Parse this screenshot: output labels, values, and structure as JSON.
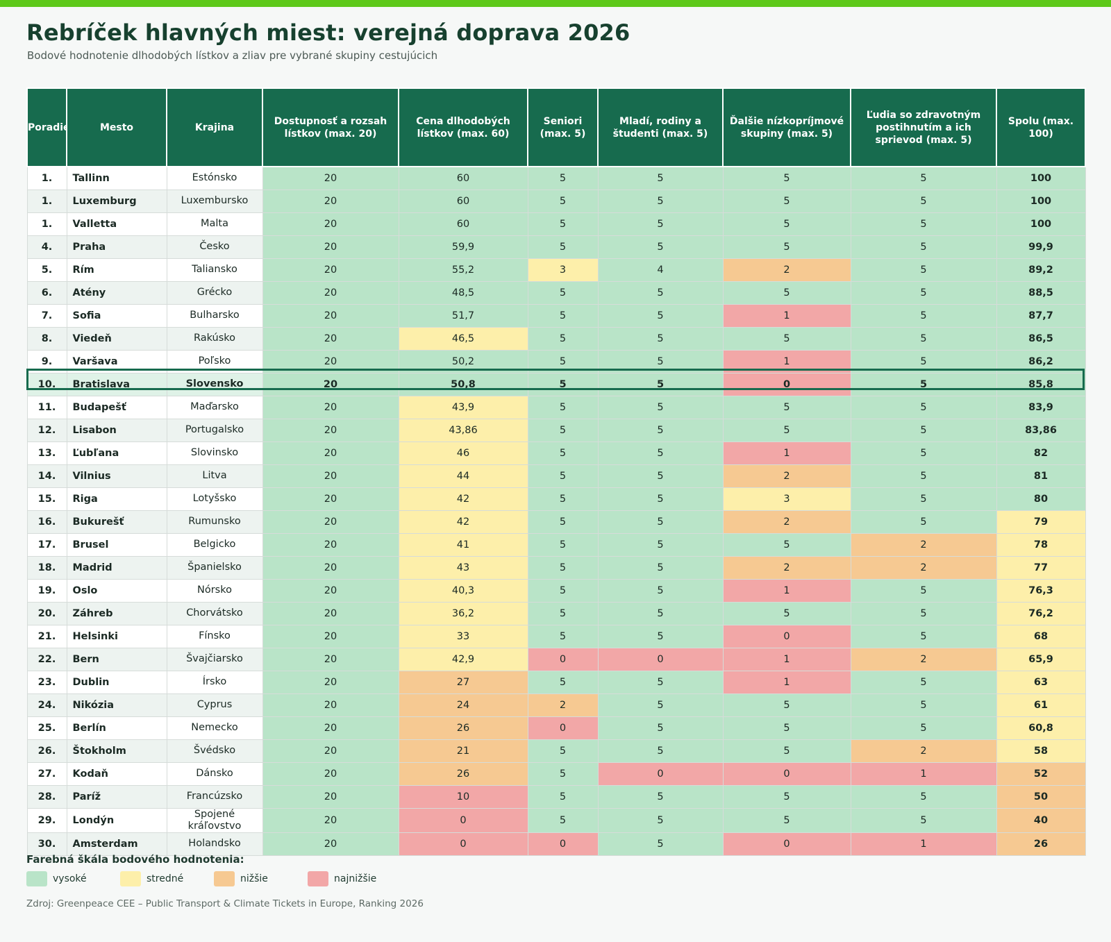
{
  "header": {
    "title": "Rebríček hlavných miest: verejná doprava 2026",
    "subtitle": "Bodové hodnotenie dlhodobých lístkov a zliav pre vybrané skupiny cestujúcich"
  },
  "table": {
    "headers": [
      "Poradie",
      "Mesto",
      "Krajina",
      "Dostupnosť a rozsah lístkov (max. 20)",
      "Cena dlhodobých lístkov (max. 60)",
      "Seniori (max. 5)",
      "Mladí, rodiny a študenti (max. 5)",
      "Ďalšie nízkopríjmové skupiny (max. 5)",
      "Ľudia so zdravotným postihnutím a ich sprievod (max. 5)",
      "Spolu (max. 100)"
    ],
    "highlighted_rank": "10.",
    "rows": [
      {
        "rank": "1.",
        "city": "Tallinn",
        "country": "Estónsko",
        "access": "20",
        "price": "60",
        "seniors": "5",
        "youth": "5",
        "lowincome": "5",
        "disabled": "5",
        "total": "100",
        "levels": [
          "high",
          "high",
          "high",
          "high",
          "high",
          "high",
          "high"
        ]
      },
      {
        "rank": "1.",
        "city": "Luxemburg",
        "country": "Luxembursko",
        "access": "20",
        "price": "60",
        "seniors": "5",
        "youth": "5",
        "lowincome": "5",
        "disabled": "5",
        "total": "100",
        "levels": [
          "high",
          "high",
          "high",
          "high",
          "high",
          "high",
          "high"
        ]
      },
      {
        "rank": "1.",
        "city": "Valletta",
        "country": "Malta",
        "access": "20",
        "price": "60",
        "seniors": "5",
        "youth": "5",
        "lowincome": "5",
        "disabled": "5",
        "total": "100",
        "levels": [
          "high",
          "high",
          "high",
          "high",
          "high",
          "high",
          "high"
        ]
      },
      {
        "rank": "4.",
        "city": "Praha",
        "country": "Česko",
        "access": "20",
        "price": "59,9",
        "seniors": "5",
        "youth": "5",
        "lowincome": "5",
        "disabled": "5",
        "total": "99,9",
        "levels": [
          "high",
          "high",
          "high",
          "high",
          "high",
          "high",
          "high"
        ]
      },
      {
        "rank": "5.",
        "city": "Rím",
        "country": "Taliansko",
        "access": "20",
        "price": "55,2",
        "seniors": "3",
        "youth": "4",
        "lowincome": "2",
        "disabled": "5",
        "total": "89,2",
        "levels": [
          "high",
          "high",
          "mid",
          "high",
          "low",
          "high",
          "high"
        ]
      },
      {
        "rank": "6.",
        "city": "Atény",
        "country": "Grécko",
        "access": "20",
        "price": "48,5",
        "seniors": "5",
        "youth": "5",
        "lowincome": "5",
        "disabled": "5",
        "total": "88,5",
        "levels": [
          "high",
          "high",
          "high",
          "high",
          "high",
          "high",
          "high"
        ]
      },
      {
        "rank": "7.",
        "city": "Sofia",
        "country": "Bulharsko",
        "access": "20",
        "price": "51,7",
        "seniors": "5",
        "youth": "5",
        "lowincome": "1",
        "disabled": "5",
        "total": "87,7",
        "levels": [
          "high",
          "high",
          "high",
          "high",
          "lowest",
          "high",
          "high"
        ]
      },
      {
        "rank": "8.",
        "city": "Viedeň",
        "country": "Rakúsko",
        "access": "20",
        "price": "46,5",
        "seniors": "5",
        "youth": "5",
        "lowincome": "5",
        "disabled": "5",
        "total": "86,5",
        "levels": [
          "high",
          "mid",
          "high",
          "high",
          "high",
          "high",
          "high"
        ]
      },
      {
        "rank": "9.",
        "city": "Varšava",
        "country": "Poľsko",
        "access": "20",
        "price": "50,2",
        "seniors": "5",
        "youth": "5",
        "lowincome": "1",
        "disabled": "5",
        "total": "86,2",
        "levels": [
          "high",
          "high",
          "high",
          "high",
          "lowest",
          "high",
          "high"
        ]
      },
      {
        "rank": "10.",
        "city": "Bratislava",
        "country": "Slovensko",
        "access": "20",
        "price": "50,8",
        "seniors": "5",
        "youth": "5",
        "lowincome": "0",
        "disabled": "5",
        "total": "85,8",
        "levels": [
          "high",
          "high",
          "high",
          "high",
          "lowest",
          "high",
          "high"
        ]
      },
      {
        "rank": "11.",
        "city": "Budapešť",
        "country": "Maďarsko",
        "access": "20",
        "price": "43,9",
        "seniors": "5",
        "youth": "5",
        "lowincome": "5",
        "disabled": "5",
        "total": "83,9",
        "levels": [
          "high",
          "mid",
          "high",
          "high",
          "high",
          "high",
          "high"
        ]
      },
      {
        "rank": "12.",
        "city": "Lisabon",
        "country": "Portugalsko",
        "access": "20",
        "price": "43,86",
        "seniors": "5",
        "youth": "5",
        "lowincome": "5",
        "disabled": "5",
        "total": "83,86",
        "levels": [
          "high",
          "mid",
          "high",
          "high",
          "high",
          "high",
          "high"
        ]
      },
      {
        "rank": "13.",
        "city": "Ľubľana",
        "country": "Slovinsko",
        "access": "20",
        "price": "46",
        "seniors": "5",
        "youth": "5",
        "lowincome": "1",
        "disabled": "5",
        "total": "82",
        "levels": [
          "high",
          "mid",
          "high",
          "high",
          "lowest",
          "high",
          "high"
        ]
      },
      {
        "rank": "14.",
        "city": "Vilnius",
        "country": "Litva",
        "access": "20",
        "price": "44",
        "seniors": "5",
        "youth": "5",
        "lowincome": "2",
        "disabled": "5",
        "total": "81",
        "levels": [
          "high",
          "mid",
          "high",
          "high",
          "low",
          "high",
          "high"
        ]
      },
      {
        "rank": "15.",
        "city": "Riga",
        "country": "Lotyšsko",
        "access": "20",
        "price": "42",
        "seniors": "5",
        "youth": "5",
        "lowincome": "3",
        "disabled": "5",
        "total": "80",
        "levels": [
          "high",
          "mid",
          "high",
          "high",
          "mid",
          "high",
          "high"
        ]
      },
      {
        "rank": "16.",
        "city": "Bukurešť",
        "country": "Rumunsko",
        "access": "20",
        "price": "42",
        "seniors": "5",
        "youth": "5",
        "lowincome": "2",
        "disabled": "5",
        "total": "79",
        "levels": [
          "high",
          "mid",
          "high",
          "high",
          "low",
          "high",
          "mid"
        ]
      },
      {
        "rank": "17.",
        "city": "Brusel",
        "country": "Belgicko",
        "access": "20",
        "price": "41",
        "seniors": "5",
        "youth": "5",
        "lowincome": "5",
        "disabled": "2",
        "total": "78",
        "levels": [
          "high",
          "mid",
          "high",
          "high",
          "high",
          "low",
          "mid"
        ]
      },
      {
        "rank": "18.",
        "city": "Madrid",
        "country": "Španielsko",
        "access": "20",
        "price": "43",
        "seniors": "5",
        "youth": "5",
        "lowincome": "2",
        "disabled": "2",
        "total": "77",
        "levels": [
          "high",
          "mid",
          "high",
          "high",
          "low",
          "low",
          "mid"
        ]
      },
      {
        "rank": "19.",
        "city": "Oslo",
        "country": "Nórsko",
        "access": "20",
        "price": "40,3",
        "seniors": "5",
        "youth": "5",
        "lowincome": "1",
        "disabled": "5",
        "total": "76,3",
        "levels": [
          "high",
          "mid",
          "high",
          "high",
          "lowest",
          "high",
          "mid"
        ]
      },
      {
        "rank": "20.",
        "city": "Záhreb",
        "country": "Chorvátsko",
        "access": "20",
        "price": "36,2",
        "seniors": "5",
        "youth": "5",
        "lowincome": "5",
        "disabled": "5",
        "total": "76,2",
        "levels": [
          "high",
          "mid",
          "high",
          "high",
          "high",
          "high",
          "mid"
        ]
      },
      {
        "rank": "21.",
        "city": "Helsinki",
        "country": "Fínsko",
        "access": "20",
        "price": "33",
        "seniors": "5",
        "youth": "5",
        "lowincome": "0",
        "disabled": "5",
        "total": "68",
        "levels": [
          "high",
          "mid",
          "high",
          "high",
          "lowest",
          "high",
          "mid"
        ]
      },
      {
        "rank": "22.",
        "city": "Bern",
        "country": "Švajčiarsko",
        "access": "20",
        "price": "42,9",
        "seniors": "0",
        "youth": "0",
        "lowincome": "1",
        "disabled": "2",
        "total": "65,9",
        "levels": [
          "high",
          "mid",
          "lowest",
          "lowest",
          "lowest",
          "low",
          "mid"
        ]
      },
      {
        "rank": "23.",
        "city": "Dublin",
        "country": "Írsko",
        "access": "20",
        "price": "27",
        "seniors": "5",
        "youth": "5",
        "lowincome": "1",
        "disabled": "5",
        "total": "63",
        "levels": [
          "high",
          "low",
          "high",
          "high",
          "lowest",
          "high",
          "mid"
        ]
      },
      {
        "rank": "24.",
        "city": "Nikózia",
        "country": "Cyprus",
        "access": "20",
        "price": "24",
        "seniors": "2",
        "youth": "5",
        "lowincome": "5",
        "disabled": "5",
        "total": "61",
        "levels": [
          "high",
          "low",
          "low",
          "high",
          "high",
          "high",
          "mid"
        ]
      },
      {
        "rank": "25.",
        "city": "Berlín",
        "country": "Nemecko",
        "access": "20",
        "price": "26",
        "seniors": "0",
        "youth": "5",
        "lowincome": "5",
        "disabled": "5",
        "total": "60,8",
        "levels": [
          "high",
          "low",
          "lowest",
          "high",
          "high",
          "high",
          "mid"
        ]
      },
      {
        "rank": "26.",
        "city": "Štokholm",
        "country": "Švédsko",
        "access": "20",
        "price": "21",
        "seniors": "5",
        "youth": "5",
        "lowincome": "5",
        "disabled": "2",
        "total": "58",
        "levels": [
          "high",
          "low",
          "high",
          "high",
          "high",
          "low",
          "mid"
        ]
      },
      {
        "rank": "27.",
        "city": "Kodaň",
        "country": "Dánsko",
        "access": "20",
        "price": "26",
        "seniors": "5",
        "youth": "0",
        "lowincome": "0",
        "disabled": "1",
        "total": "52",
        "levels": [
          "high",
          "low",
          "high",
          "lowest",
          "lowest",
          "lowest",
          "low"
        ]
      },
      {
        "rank": "28.",
        "city": "Paríž",
        "country": "Francúzsko",
        "access": "20",
        "price": "10",
        "seniors": "5",
        "youth": "5",
        "lowincome": "5",
        "disabled": "5",
        "total": "50",
        "levels": [
          "high",
          "lowest",
          "high",
          "high",
          "high",
          "high",
          "low"
        ]
      },
      {
        "rank": "29.",
        "city": "Londýn",
        "country": "Spojené kráľovstvo",
        "access": "20",
        "price": "0",
        "seniors": "5",
        "youth": "5",
        "lowincome": "5",
        "disabled": "5",
        "total": "40",
        "levels": [
          "high",
          "lowest",
          "high",
          "high",
          "high",
          "high",
          "low"
        ]
      },
      {
        "rank": "30.",
        "city": "Amsterdam",
        "country": "Holandsko",
        "access": "20",
        "price": "0",
        "seniors": "0",
        "youth": "5",
        "lowincome": "0",
        "disabled": "1",
        "total": "26",
        "levels": [
          "high",
          "lowest",
          "lowest",
          "high",
          "lowest",
          "lowest",
          "low"
        ]
      }
    ]
  },
  "legend": {
    "title": "Farebná škála bodového hodnotenia:",
    "items": [
      {
        "key": "high",
        "label": "vysoké",
        "color": "#b9e4c8"
      },
      {
        "key": "mid",
        "label": "stredné",
        "color": "#fdefaa"
      },
      {
        "key": "low",
        "label": "nižšie",
        "color": "#f6c992"
      },
      {
        "key": "lowest",
        "label": "najnižšie",
        "color": "#f2a7a7"
      }
    ]
  },
  "source": "Zdroj: Greenpeace CEE – Public Transport & Climate Tickets in Europe, Ranking 2026",
  "colors": {
    "accent_bar": "#5ec91a",
    "header_bg": "#176b4e",
    "title_text": "#17412f"
  }
}
